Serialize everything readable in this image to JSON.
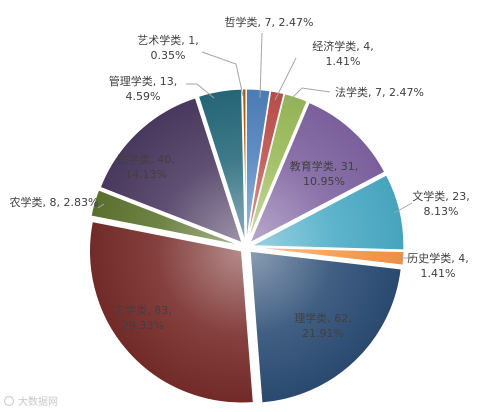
{
  "chart_data": {
    "type": "pie",
    "title": "",
    "categories": [
      "哲学类",
      "经济学类",
      "法学类",
      "教育学类",
      "文学类",
      "历史学类",
      "理学类",
      "工学类",
      "农学类",
      "医学类",
      "管理学类",
      "艺术学类"
    ],
    "values": [
      7,
      4,
      7,
      31,
      23,
      4,
      62,
      83,
      8,
      40,
      13,
      1
    ],
    "percents": [
      "2.47%",
      "1.41%",
      "2.47%",
      "10.95%",
      "8.13%",
      "1.41%",
      "21.91%",
      "29.33%",
      "2.83%",
      "14.13%",
      "4.59%",
      "0.35%"
    ],
    "colors": [
      "#4F81BD",
      "#C0504D",
      "#9BBB59",
      "#8064A2",
      "#4BACC6",
      "#F79646",
      "#2C4D75",
      "#772C2A",
      "#5F7530",
      "#4D3B62",
      "#276A7C",
      "#B65708"
    ],
    "labels": [
      [
        "哲学类, 7, 2.47%"
      ],
      [
        "经济学类, 4,",
        "1.41%"
      ],
      [
        "法学类, 7, 2.47%"
      ],
      [
        "教育学类, 31,",
        "10.95%"
      ],
      [
        "文学类, 23,",
        "8.13%"
      ],
      [
        "历史学类, 4,",
        "1.41%"
      ],
      [
        "理学类, 62,",
        "21.91%"
      ],
      [
        "工学类, 83,",
        "29.33%"
      ],
      [
        "农学类, 8, 2.83%"
      ],
      [
        "医学类, 40,",
        "14.13%"
      ],
      [
        "管理学类, 13,",
        "4.59%"
      ],
      [
        "艺术学类, 1,",
        "0.35%"
      ]
    ]
  },
  "watermark": {
    "text": "大数据网"
  }
}
